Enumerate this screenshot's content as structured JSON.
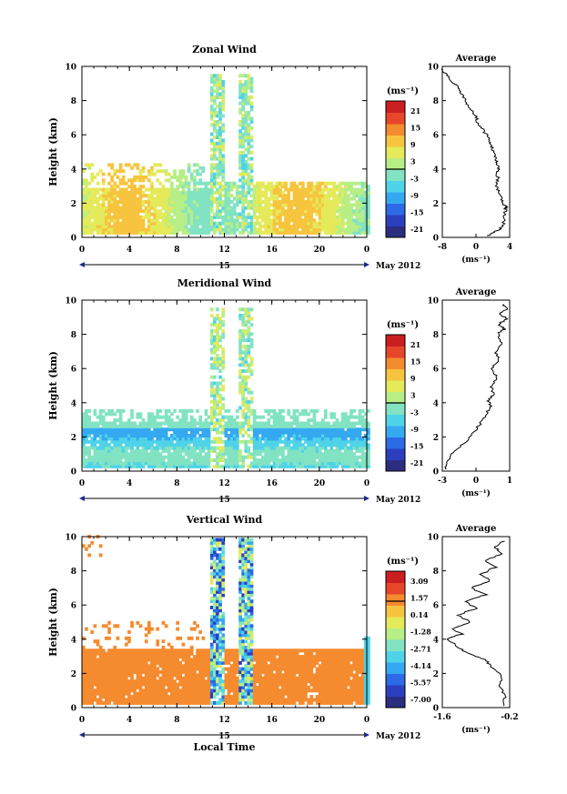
{
  "chart_data": [
    {
      "type": "heatmap",
      "title": "Zonal Wind",
      "ylabel": "Height (km)",
      "xlabel": "",
      "date_label": "15",
      "month_label": "May 2012",
      "xlim": [
        0,
        24
      ],
      "ylim": [
        0,
        10
      ],
      "xticks": [
        "0",
        "4",
        "8",
        "12",
        "16",
        "20",
        "0"
      ],
      "yticks": [
        "0",
        "2",
        "4",
        "6",
        "8",
        "10"
      ],
      "colorbar": {
        "unit": "(ms⁻¹)",
        "ticks": [
          "21",
          "15",
          "9",
          "3",
          "-3",
          "-9",
          "-15",
          "-21"
        ]
      },
      "profile": {
        "title": "Average",
        "xticks": [
          "-8",
          "0",
          "4"
        ],
        "xlim": [
          -8,
          4.5
        ],
        "xlabel": "(ms⁻¹)",
        "yticks": [
          "0",
          "2",
          "4",
          "6",
          "8",
          "10"
        ],
        "points": [
          [
            0.5,
            0.1
          ],
          [
            1.6,
            0.3
          ],
          [
            2.8,
            0.5
          ],
          [
            3.4,
            0.8
          ],
          [
            3.6,
            1.2
          ],
          [
            3.7,
            1.6
          ],
          [
            3.9,
            1.8
          ],
          [
            3.3,
            2.0
          ],
          [
            2.8,
            2.4
          ],
          [
            2.2,
            2.8
          ],
          [
            2.1,
            3.2
          ],
          [
            2.4,
            3.5
          ],
          [
            2.0,
            3.8
          ],
          [
            2.5,
            4.0
          ],
          [
            2.2,
            4.3
          ],
          [
            1.8,
            4.6
          ],
          [
            1.4,
            5.0
          ],
          [
            1.2,
            5.3
          ],
          [
            0.8,
            5.6
          ],
          [
            0.2,
            6.0
          ],
          [
            -0.8,
            6.4
          ],
          [
            -1.5,
            6.8
          ],
          [
            -2.0,
            7.2
          ],
          [
            -3.0,
            7.6
          ],
          [
            -3.8,
            8.0
          ],
          [
            -4.5,
            8.4
          ],
          [
            -5.2,
            8.8
          ],
          [
            -6.5,
            9.2
          ],
          [
            -7.5,
            9.6
          ],
          [
            -8.0,
            9.9
          ]
        ]
      }
    },
    {
      "type": "heatmap",
      "title": "Meridional Wind",
      "ylabel": "Height (km)",
      "xlabel": "",
      "date_label": "15",
      "month_label": "May 2012",
      "xlim": [
        0,
        24
      ],
      "ylim": [
        0,
        10
      ],
      "xticks": [
        "0",
        "4",
        "8",
        "12",
        "16",
        "20",
        "0"
      ],
      "yticks": [
        "0",
        "2",
        "4",
        "6",
        "8",
        "10"
      ],
      "colorbar": {
        "unit": "(ms⁻¹)",
        "ticks": [
          "21",
          "15",
          "9",
          "3",
          "-3",
          "-9",
          "-15",
          "-21"
        ]
      },
      "profile": {
        "title": "Average",
        "xticks": [
          "-3",
          "0",
          "1"
        ],
        "xlim": [
          -3,
          1.3
        ],
        "xlabel": "(ms⁻¹)",
        "yticks": [
          "0",
          "2",
          "4",
          "6",
          "8",
          "10"
        ],
        "points": [
          [
            -2.9,
            0.1
          ],
          [
            -2.7,
            0.5
          ],
          [
            -2.4,
            1.0
          ],
          [
            -1.8,
            1.5
          ],
          [
            -1.2,
            2.0
          ],
          [
            -0.8,
            2.5
          ],
          [
            -0.4,
            3.0
          ],
          [
            -0.1,
            3.5
          ],
          [
            0.1,
            3.8
          ],
          [
            -0.1,
            4.1
          ],
          [
            0.3,
            4.5
          ],
          [
            0.1,
            5.0
          ],
          [
            0.5,
            5.5
          ],
          [
            0.2,
            6.0
          ],
          [
            0.6,
            6.5
          ],
          [
            0.4,
            7.0
          ],
          [
            0.8,
            7.5
          ],
          [
            0.5,
            8.0
          ],
          [
            1.0,
            8.3
          ],
          [
            0.6,
            8.6
          ],
          [
            1.1,
            8.9
          ],
          [
            0.7,
            9.2
          ],
          [
            1.2,
            9.5
          ],
          [
            0.8,
            9.8
          ]
        ]
      }
    },
    {
      "type": "heatmap",
      "title": "Vertical Wind",
      "ylabel": "Height (km)",
      "xlabel": "Local Time",
      "date_label": "15",
      "month_label": "May 2012",
      "xlim": [
        0,
        24
      ],
      "ylim": [
        0,
        10
      ],
      "xticks": [
        "0",
        "4",
        "8",
        "12",
        "16",
        "20",
        "0"
      ],
      "yticks": [
        "0",
        "2",
        "4",
        "6",
        "8",
        "10"
      ],
      "colorbar": {
        "unit": "(ms⁻¹)",
        "ticks": [
          "3.09",
          "1.57",
          "0.14",
          "-1.28",
          "-2.71",
          "-4.14",
          "-5.57",
          "-7.00"
        ]
      },
      "profile": {
        "title": "Average",
        "xticks": [
          "-1.6",
          "-0.2"
        ],
        "xlim": [
          -1.6,
          -0.2
        ],
        "xlabel": "(ms⁻¹)",
        "yticks": [
          "0",
          "2",
          "4",
          "6",
          "8",
          "10"
        ],
        "points": [
          [
            -0.35,
            0.1
          ],
          [
            -0.3,
            0.6
          ],
          [
            -0.4,
            1.2
          ],
          [
            -0.35,
            1.8
          ],
          [
            -0.6,
            2.4
          ],
          [
            -0.7,
            2.8
          ],
          [
            -1.1,
            3.2
          ],
          [
            -1.3,
            3.6
          ],
          [
            -1.5,
            4.0
          ],
          [
            -1.2,
            4.3
          ],
          [
            -1.4,
            4.6
          ],
          [
            -1.0,
            5.0
          ],
          [
            -1.3,
            5.4
          ],
          [
            -0.9,
            5.8
          ],
          [
            -1.1,
            6.2
          ],
          [
            -0.7,
            6.6
          ],
          [
            -1.0,
            7.0
          ],
          [
            -0.6,
            7.4
          ],
          [
            -0.8,
            7.8
          ],
          [
            -0.5,
            8.2
          ],
          [
            -0.7,
            8.6
          ],
          [
            -0.35,
            9.0
          ],
          [
            -0.5,
            9.4
          ],
          [
            -0.3,
            9.8
          ]
        ]
      }
    }
  ],
  "colors": {
    "colormap": [
      "#2b2d7e",
      "#2b3fbe",
      "#2d6ae6",
      "#35a9f0",
      "#4fd3e8",
      "#82e3c3",
      "#b7ee86",
      "#e4ea5a",
      "#f7c43f",
      "#f58b2f",
      "#e8462a",
      "#cb1e20"
    ],
    "zero_line": "#000000"
  }
}
